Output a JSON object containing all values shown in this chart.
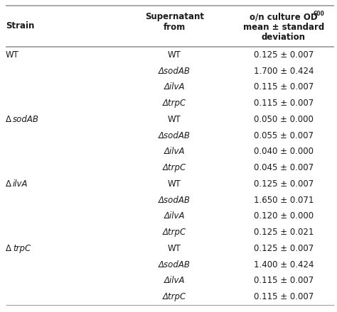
{
  "col_headers_line1": [
    "Strain",
    "Supernatant",
    "o/n culture OD"
  ],
  "col_headers_line2": [
    "",
    "from",
    "mean ± standard"
  ],
  "col_headers_line3": [
    "",
    "",
    "deviation"
  ],
  "rows": [
    [
      "WT",
      "WT",
      "0.125 ± 0.007"
    ],
    [
      "",
      "ΔsodAB",
      "1.700 ± 0.424"
    ],
    [
      "",
      "ΔilvA",
      "0.115 ± 0.007"
    ],
    [
      "",
      "ΔtrpC",
      "0.115 ± 0.007"
    ],
    [
      "ΔsodAB",
      "WT",
      "0.050 ± 0.000"
    ],
    [
      "",
      "ΔsodAB",
      "0.055 ± 0.007"
    ],
    [
      "",
      "ΔilvA",
      "0.040 ± 0.000"
    ],
    [
      "",
      "ΔtrpC",
      "0.045 ± 0.007"
    ],
    [
      "ΔilvA",
      "WT",
      "0.125 ± 0.007"
    ],
    [
      "",
      "ΔsodAB",
      "1.650 ± 0.071"
    ],
    [
      "",
      "ΔilvA",
      "0.120 ± 0.000"
    ],
    [
      "",
      "ΔtrpC",
      "0.125 ± 0.021"
    ],
    [
      "ΔtrpC",
      "WT",
      "0.125 ± 0.007"
    ],
    [
      "",
      "ΔsodAB",
      "1.400 ± 0.424"
    ],
    [
      "",
      "ΔilvA",
      "0.115 ± 0.007"
    ],
    [
      "",
      "ΔtrpC",
      "0.115 ± 0.007"
    ]
  ],
  "text_color": "#1a1a1a",
  "header_fontsize": 8.5,
  "body_fontsize": 8.5,
  "fig_width": 4.74,
  "fig_height": 4.4,
  "dpi": 100
}
